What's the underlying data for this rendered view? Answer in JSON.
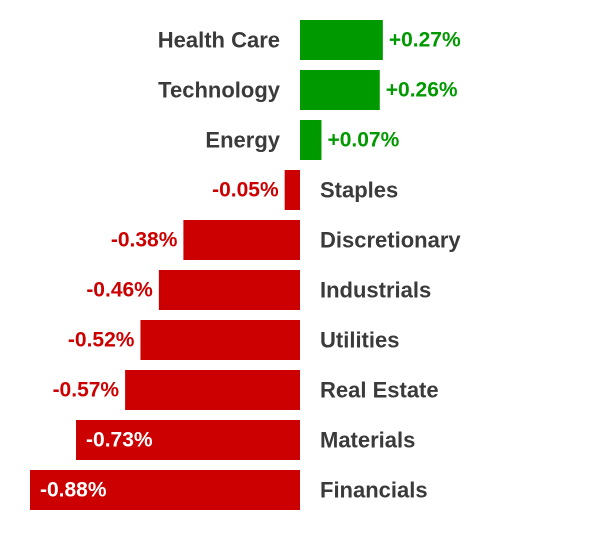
{
  "chart_data": {
    "type": "bar",
    "orientation": "horizontal",
    "categories": [
      "Health Care",
      "Technology",
      "Energy",
      "Staples",
      "Discretionary",
      "Industrials",
      "Utilities",
      "Real Estate",
      "Materials",
      "Financials"
    ],
    "values": [
      0.27,
      0.26,
      0.07,
      -0.05,
      -0.38,
      -0.46,
      -0.52,
      -0.57,
      -0.73,
      -0.88
    ],
    "value_labels": [
      "+0.27%",
      "+0.26%",
      "+0.07%",
      "-0.05%",
      "-0.38%",
      "-0.46%",
      "-0.52%",
      "-0.57%",
      "-0.73%",
      "-0.88%"
    ],
    "xlim": [
      -0.88,
      0.27
    ],
    "title": "",
    "xlabel": "",
    "ylabel": "",
    "grid": false,
    "colors": {
      "positive": "#009a00",
      "negative": "#cc0000",
      "label": "#3a3a3a",
      "inside_label": "#ffffff"
    }
  }
}
